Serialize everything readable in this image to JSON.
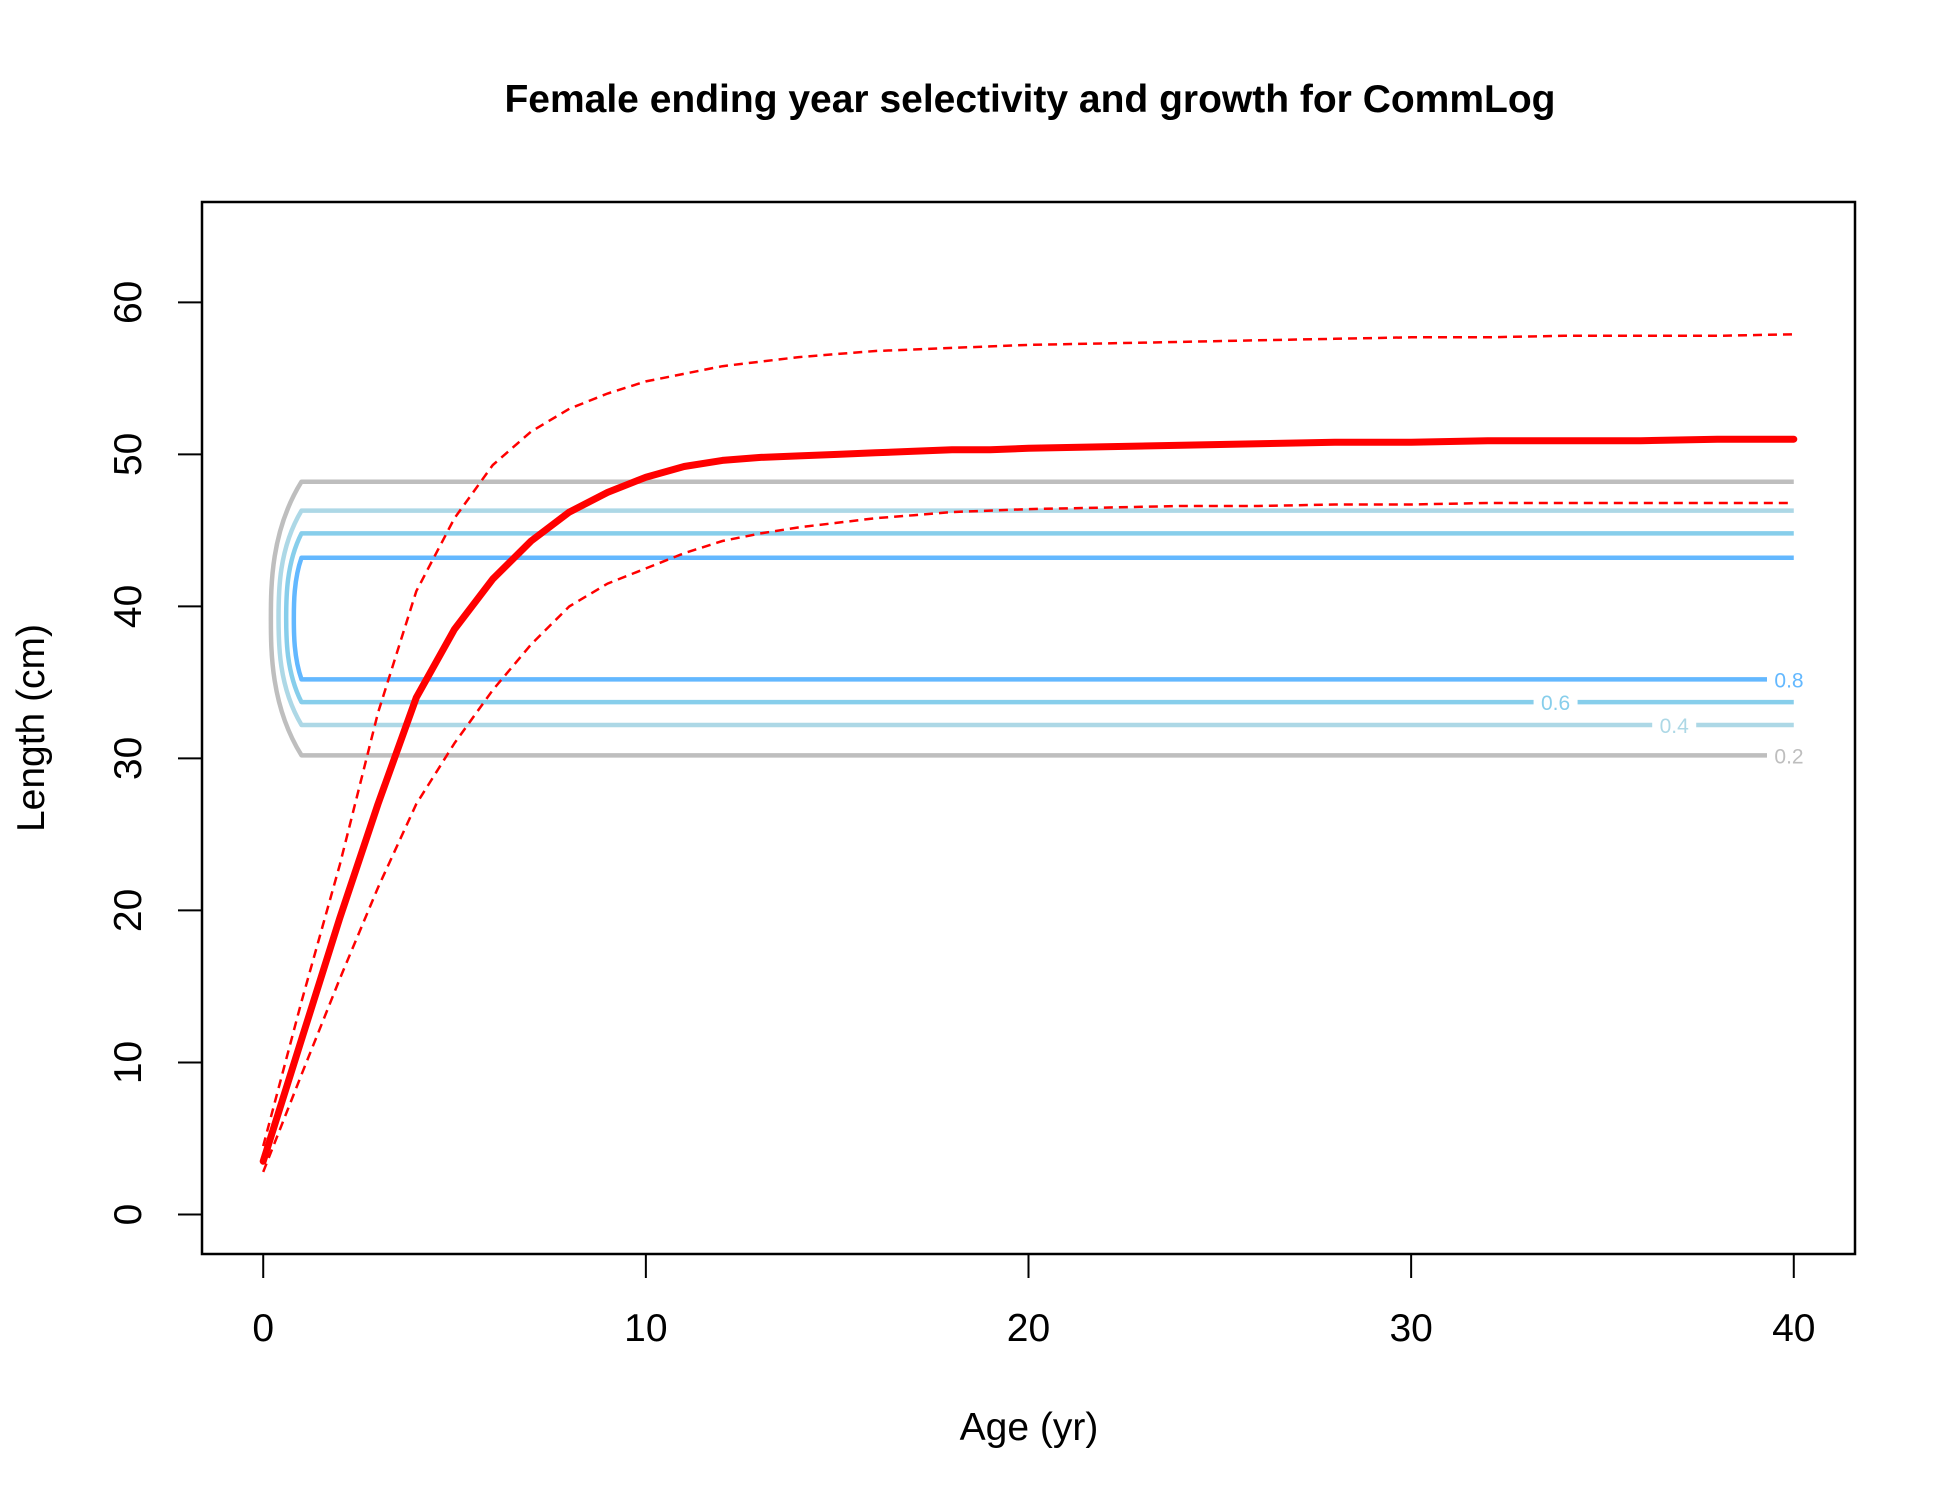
{
  "chart_data": {
    "type": "line",
    "title": "Female ending year selectivity and growth for CommLog",
    "xlabel": "Age (yr)",
    "ylabel": "Length (cm)",
    "xlim": [
      -1.6,
      41.6
    ],
    "ylim": [
      -2.6,
      66.6
    ],
    "xticks": [
      0,
      10,
      20,
      30,
      40
    ],
    "yticks": [
      0,
      10,
      20,
      30,
      40,
      50,
      60
    ],
    "grid": false,
    "legend": "none",
    "growth": {
      "color": "#ff0000",
      "mean": {
        "x": [
          0,
          1,
          2,
          3,
          4,
          5,
          6,
          7,
          8,
          9,
          10,
          11,
          12,
          13,
          14,
          15,
          16,
          17,
          18,
          19,
          20,
          22,
          24,
          26,
          28,
          30,
          32,
          34,
          36,
          38,
          40
        ],
        "y": [
          3.5,
          11.5,
          19.5,
          27,
          34,
          38.5,
          41.8,
          44.3,
          46.2,
          47.5,
          48.5,
          49.2,
          49.6,
          49.8,
          49.9,
          50.0,
          50.1,
          50.2,
          50.3,
          50.3,
          50.4,
          50.5,
          50.6,
          50.7,
          50.8,
          50.8,
          50.9,
          50.9,
          50.9,
          51.0,
          51.0
        ]
      },
      "upper": {
        "x": [
          0,
          1,
          2,
          3,
          4,
          5,
          6,
          7,
          8,
          9,
          10,
          11,
          12,
          13,
          14,
          15,
          16,
          17,
          18,
          19,
          20,
          22,
          24,
          26,
          28,
          30,
          32,
          34,
          36,
          38,
          40
        ],
        "y": [
          4.5,
          14,
          23,
          33,
          41,
          45.8,
          49.3,
          51.5,
          53,
          54,
          54.8,
          55.3,
          55.8,
          56.1,
          56.4,
          56.6,
          56.8,
          56.9,
          57.0,
          57.1,
          57.2,
          57.3,
          57.4,
          57.5,
          57.6,
          57.7,
          57.7,
          57.8,
          57.8,
          57.8,
          57.9
        ]
      },
      "lower": {
        "x": [
          0,
          1,
          2,
          3,
          4,
          5,
          6,
          7,
          8,
          9,
          10,
          11,
          12,
          13,
          14,
          15,
          16,
          17,
          18,
          19,
          20,
          22,
          24,
          26,
          28,
          30,
          32,
          34,
          36,
          38,
          40
        ],
        "y": [
          2.8,
          9.2,
          15.5,
          21.5,
          27,
          31,
          34.5,
          37.5,
          40,
          41.5,
          42.5,
          43.5,
          44.3,
          44.8,
          45.2,
          45.5,
          45.8,
          46.0,
          46.2,
          46.3,
          46.4,
          46.5,
          46.6,
          46.6,
          46.7,
          46.7,
          46.8,
          46.8,
          46.8,
          46.8,
          46.8
        ]
      }
    },
    "selectivity_contours": [
      {
        "level": "0.2",
        "color": "#bebebe",
        "x_start": 1,
        "x_end": 40,
        "y_low": 30.2,
        "y_high": 48.2,
        "x_tip": 0.2,
        "label_x": 39.3,
        "label_y": 30.2,
        "label_on": "low"
      },
      {
        "level": "0.4",
        "color": "#add8e6",
        "x_start": 1,
        "x_end": 40,
        "y_low": 32.2,
        "y_high": 46.3,
        "x_tip": 0.4,
        "label_x": 36.3,
        "label_y": 32.2,
        "label_on": "low"
      },
      {
        "level": "0.6",
        "color": "#87ceeb",
        "x_start": 1,
        "x_end": 40,
        "y_low": 33.7,
        "y_high": 44.8,
        "x_tip": 0.6,
        "label_x": 33.2,
        "label_y": 33.7,
        "label_on": "low"
      },
      {
        "level": "0.8",
        "color": "#63b8ff",
        "x_start": 1,
        "x_end": 40,
        "y_low": 35.2,
        "y_high": 43.2,
        "x_tip": 0.8,
        "label_x": 39.3,
        "label_y": 35.2,
        "label_on": "low"
      }
    ]
  }
}
